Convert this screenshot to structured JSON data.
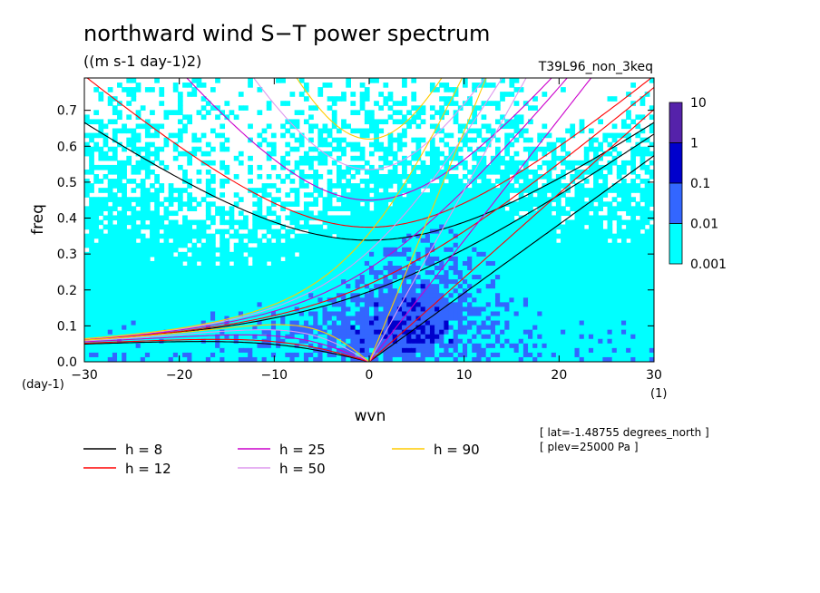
{
  "chart_data": {
    "type": "heatmap",
    "title": "northward wind S−T power spectrum",
    "subtitle": "((m s-1 day-1)2)",
    "run_label": "T39L96_non_3keq",
    "xlabel": "wvn",
    "ylabel": "freq",
    "x_unit": "(1)",
    "y_unit": "(day-1)",
    "xlim": [
      -30,
      30
    ],
    "ylim": [
      0,
      0.79
    ],
    "x_ticks": [
      {
        "value": -30,
        "label": "−30"
      },
      {
        "value": -20,
        "label": "−20"
      },
      {
        "value": -10,
        "label": "−10"
      },
      {
        "value": 0,
        "label": "0"
      },
      {
        "value": 10,
        "label": "10"
      },
      {
        "value": 20,
        "label": "20"
      },
      {
        "value": 30,
        "label": "30"
      }
    ],
    "y_ticks": [
      {
        "value": 0,
        "label": "0.0"
      },
      {
        "value": 0.1,
        "label": "0.1"
      },
      {
        "value": 0.2,
        "label": "0.2"
      },
      {
        "value": 0.3,
        "label": "0.3"
      },
      {
        "value": 0.4,
        "label": "0.4"
      },
      {
        "value": 0.5,
        "label": "0.5"
      },
      {
        "value": 0.6,
        "label": "0.6"
      },
      {
        "value": 0.7,
        "label": "0.7"
      }
    ],
    "contour_levels": [
      0.001,
      0.01,
      0.1,
      1,
      10
    ],
    "colorbar": {
      "labels": [
        "10",
        "1",
        "0.1",
        "0.01",
        "0.001"
      ],
      "colors": [
        "#0000ff",
        "#0000cc",
        "#3366ff",
        "#00ffff"
      ],
      "top_color": "#5522aa"
    },
    "band_colors": [
      "#ffffff",
      "#00ffff",
      "#3366ff",
      "#0000cc"
    ],
    "series": [
      {
        "name": "h =  8",
        "h": 8,
        "color": "#000000"
      },
      {
        "name": "h = 12",
        "h": 12,
        "color": "#ff0000"
      },
      {
        "name": "h = 25",
        "h": 25,
        "color": "#cc00cc"
      },
      {
        "name": "h = 50",
        "h": 50,
        "color": "#dd99ee"
      },
      {
        "name": "h = 90",
        "h": 90,
        "color": "#ffcc00"
      }
    ],
    "annotations": [
      "[ lat=-1.48755 degrees_north ]",
      "[ plev=25000 Pa ]"
    ]
  }
}
